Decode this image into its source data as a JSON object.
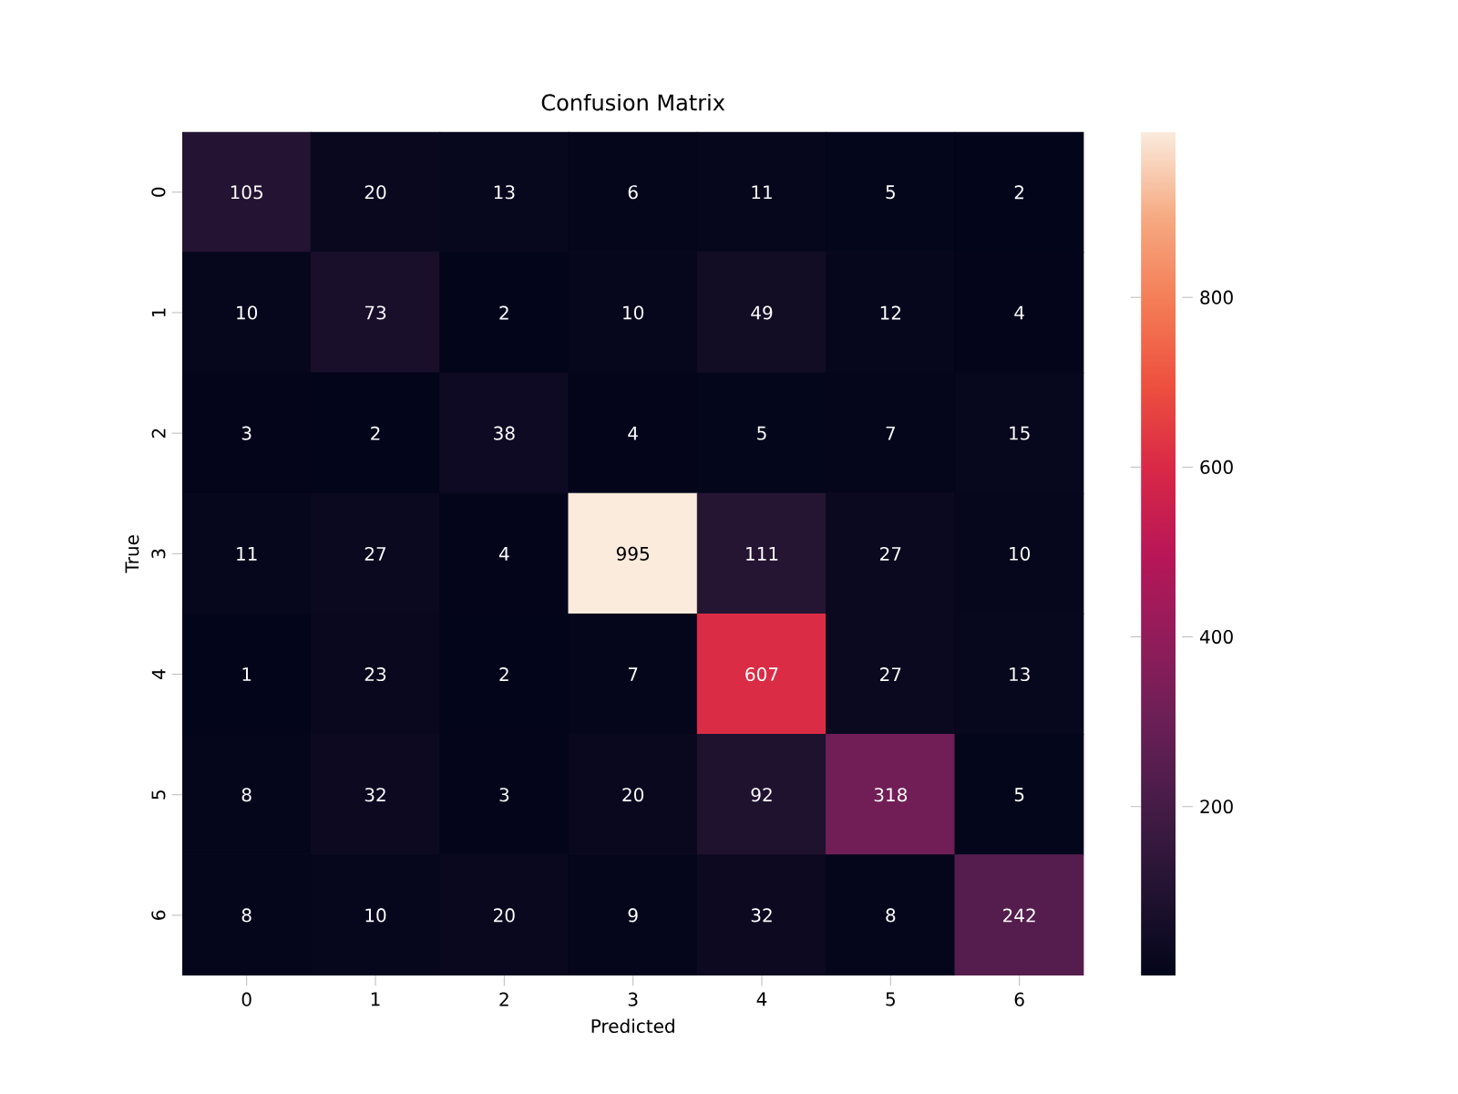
{
  "chart_data": {
    "type": "heatmap",
    "title": "Confusion Matrix",
    "xlabel": "Predicted",
    "ylabel": "True",
    "categories": [
      "0",
      "1",
      "2",
      "3",
      "4",
      "5",
      "6"
    ],
    "y_categories": [
      "0",
      "1",
      "2",
      "3",
      "4",
      "5",
      "6"
    ],
    "cells": [
      [
        105,
        20,
        13,
        6,
        11,
        5,
        2
      ],
      [
        10,
        73,
        2,
        10,
        49,
        12,
        4
      ],
      [
        3,
        2,
        38,
        4,
        5,
        7,
        15
      ],
      [
        11,
        27,
        4,
        995,
        111,
        27,
        10
      ],
      [
        1,
        23,
        2,
        7,
        607,
        27,
        13
      ],
      [
        8,
        32,
        3,
        20,
        92,
        318,
        5
      ],
      [
        8,
        10,
        20,
        9,
        32,
        8,
        242
      ]
    ],
    "clim": [
      1,
      995
    ],
    "cticks": [
      200,
      400,
      600,
      800
    ],
    "data_labels": true
  }
}
